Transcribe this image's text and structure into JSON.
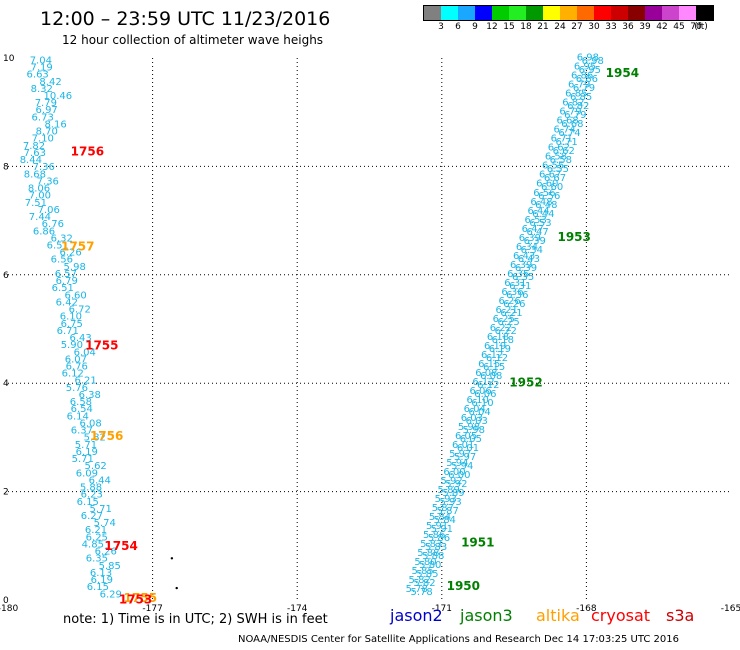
{
  "title": "12:00 – 23:59 UTC 11/23/2016",
  "subtitle": "12 hour collection of altimeter wave heighs",
  "colorbar": {
    "unit_label": "(ft)",
    "swatches": [
      "#808080",
      "#00ffff",
      "#1aa7ff",
      "#0000ff",
      "#00cc00",
      "#22ee22",
      "#009900",
      "#ffff00",
      "#ffb000",
      "#ff6a00",
      "#ff0000",
      "#cc0000",
      "#880000",
      "#990099",
      "#cc44cc",
      "#ff88ff",
      "#000000"
    ],
    "labels": [
      "3",
      "6",
      "9",
      "12",
      "15",
      "18",
      "21",
      "24",
      "27",
      "30",
      "33",
      "36",
      "39",
      "42",
      "45",
      "70"
    ]
  },
  "map": {
    "lon_min": -180,
    "lon_max": -165,
    "lat_min": 0,
    "lat_max": 10,
    "x_ticks": [
      "-180",
      "-177",
      "-174",
      "-171",
      "-168",
      "-165"
    ],
    "y_ticks": [
      "0",
      "2",
      "4",
      "6",
      "8",
      "10"
    ],
    "wave_color": "#1ab6e6",
    "west_track": {
      "heights": [
        "7.04",
        "7.19",
        "6.63",
        "8.42",
        "8.32",
        "10.46",
        "7.79",
        "6.97",
        "6.73",
        "8.16",
        "8.70",
        "7.10",
        "7.82",
        "7.63",
        "8.44",
        "7.36",
        "8.68",
        "7.36",
        "8.06",
        "7.00",
        "7.51",
        "7.06",
        "7.44",
        "6.76",
        "6.86",
        "6.32",
        "6.51",
        "6.26",
        "6.56",
        "5.98",
        "6.57",
        "6.79",
        "6.51",
        "6.60",
        "6.42",
        "6.72",
        "6.10",
        "6.75",
        "6.71",
        "6.43",
        "5.90",
        "6.04",
        "6.07",
        "6.76",
        "6.12",
        "6.21",
        "5.76",
        "6.38",
        "6.58",
        "6.54",
        "6.14",
        "6.08",
        "6.37",
        "5.82",
        "5.71",
        "6.19",
        "5.71",
        "5.62",
        "6.09",
        "6.44",
        "5.88",
        "6.23",
        "6.15",
        "5.71",
        "6.27",
        "5.74",
        "6.21",
        "6.25",
        "4.85",
        "6.26",
        "6.35",
        "5.85",
        "6.13",
        "6.19",
        "6.15",
        "6.29"
      ]
    },
    "east_track": {
      "heights": [
        "6.98",
        "6.95",
        "6.86",
        "6.79",
        "6.85",
        "6.82",
        "6.79",
        "6.68",
        "6.74",
        "6.71",
        "6.62",
        "6.58",
        "6.55",
        "6.67",
        "6.60",
        "6.56",
        "6.48",
        "6.44",
        "6.53",
        "6.47",
        "6.39",
        "6.34",
        "6.43",
        "6.39",
        "6.35",
        "6.31",
        "6.36",
        "6.26",
        "6.21",
        "6.25",
        "6.22",
        "6.18",
        "6.19",
        "6.12",
        "6.15",
        "6.08",
        "6.12",
        "6.06",
        "6.10",
        "6.04",
        "6.03",
        "5.98",
        "6.05",
        "6.01",
        "5.97",
        "5.94",
        "6.00",
        "5.92",
        "5.89",
        "5.93",
        "5.87",
        "5.84",
        "5.91",
        "5.86",
        "5.83",
        "5.88",
        "5.80",
        "5.85",
        "5.82",
        "5.78"
      ]
    },
    "time_stamps": [
      {
        "text": "1954",
        "lon": -167.6,
        "lat": 9.65,
        "color": "#008000"
      },
      {
        "text": "1953",
        "lon": -168.6,
        "lat": 6.62,
        "color": "#008000"
      },
      {
        "text": "1952",
        "lon": -169.6,
        "lat": 3.94,
        "color": "#008000"
      },
      {
        "text": "1951",
        "lon": -170.6,
        "lat": 0.99,
        "color": "#008000"
      },
      {
        "text": "1950",
        "lon": -170.9,
        "lat": 0.18,
        "color": "#008000"
      },
      {
        "text": "1756",
        "lon": -178.7,
        "lat": 8.2,
        "color": "#ff0000"
      },
      {
        "text": "1757",
        "lon": -178.9,
        "lat": 6.45,
        "color": "#ffa000"
      },
      {
        "text": "1755",
        "lon": -178.4,
        "lat": 4.62,
        "color": "#ff0000"
      },
      {
        "text": "1756",
        "lon": -178.3,
        "lat": 2.95,
        "color": "#ffa000"
      },
      {
        "text": "1754",
        "lon": -178.0,
        "lat": 0.92,
        "color": "#ff0000"
      },
      {
        "text": "1755",
        "lon": -177.6,
        "lat": -0.04,
        "color": "#ffa000"
      },
      {
        "text": "1753",
        "lon": -177.7,
        "lat": -0.06,
        "color": "#ff0000"
      }
    ],
    "dots": [
      {
        "lon": -176.6,
        "lat": 0.77
      },
      {
        "lon": -176.5,
        "lat": 0.22
      }
    ]
  },
  "note": "note:  1) Time is in UTC;  2) SWH is in feet",
  "legend": [
    {
      "label": "jason2",
      "color": "#0000cc"
    },
    {
      "label": "jason3",
      "color": "#008000"
    },
    {
      "label": "altika",
      "color": "#ffa000"
    },
    {
      "label": "cryosat",
      "color": "#ff0000"
    },
    {
      "label": "s3a",
      "color": "#cc0000"
    }
  ],
  "footer": "NOAA/NESDIS Center for Satellite Applications and Research     Dec 14 17:03:25 UTC 2016"
}
